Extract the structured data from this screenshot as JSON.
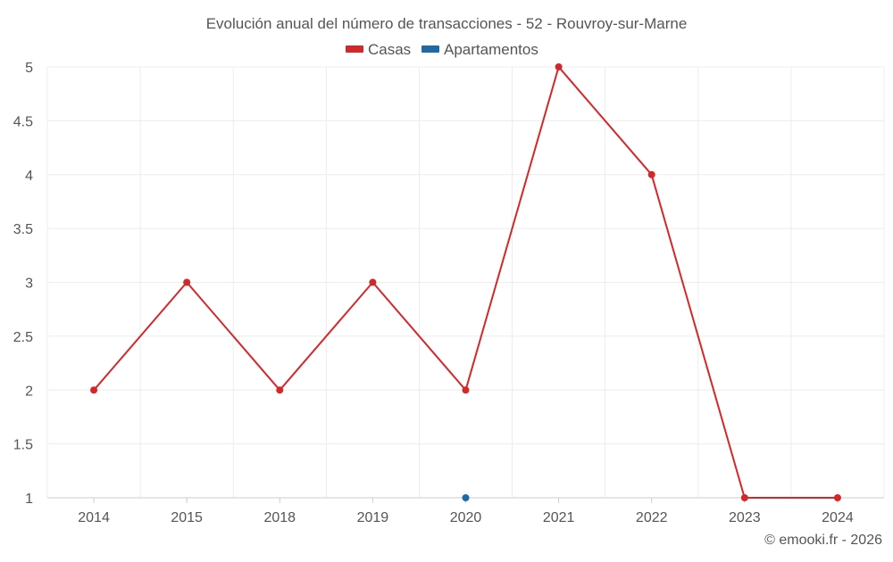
{
  "chart_data": {
    "type": "line",
    "title": "Evolución anual del número de transacciones - 52 - Rouvroy-sur-Marne",
    "categories": [
      "2014",
      "2015",
      "2018",
      "2019",
      "2020",
      "2021",
      "2022",
      "2023",
      "2024"
    ],
    "series": [
      {
        "name": "Casas",
        "color": "#d62728",
        "values": [
          2,
          3,
          2,
          3,
          2,
          5,
          4,
          1,
          1
        ]
      },
      {
        "name": "Apartamentos",
        "color": "#1f6aa5",
        "values": [
          null,
          null,
          null,
          null,
          1,
          null,
          null,
          null,
          null
        ]
      }
    ],
    "yticks": [
      "1",
      "1.5",
      "2",
      "2.5",
      "3",
      "3.5",
      "4",
      "4.5",
      "5"
    ],
    "ylim": [
      1,
      5
    ],
    "grid": true,
    "legend_position": "top-center"
  },
  "credit": "© emooki.fr - 2026"
}
